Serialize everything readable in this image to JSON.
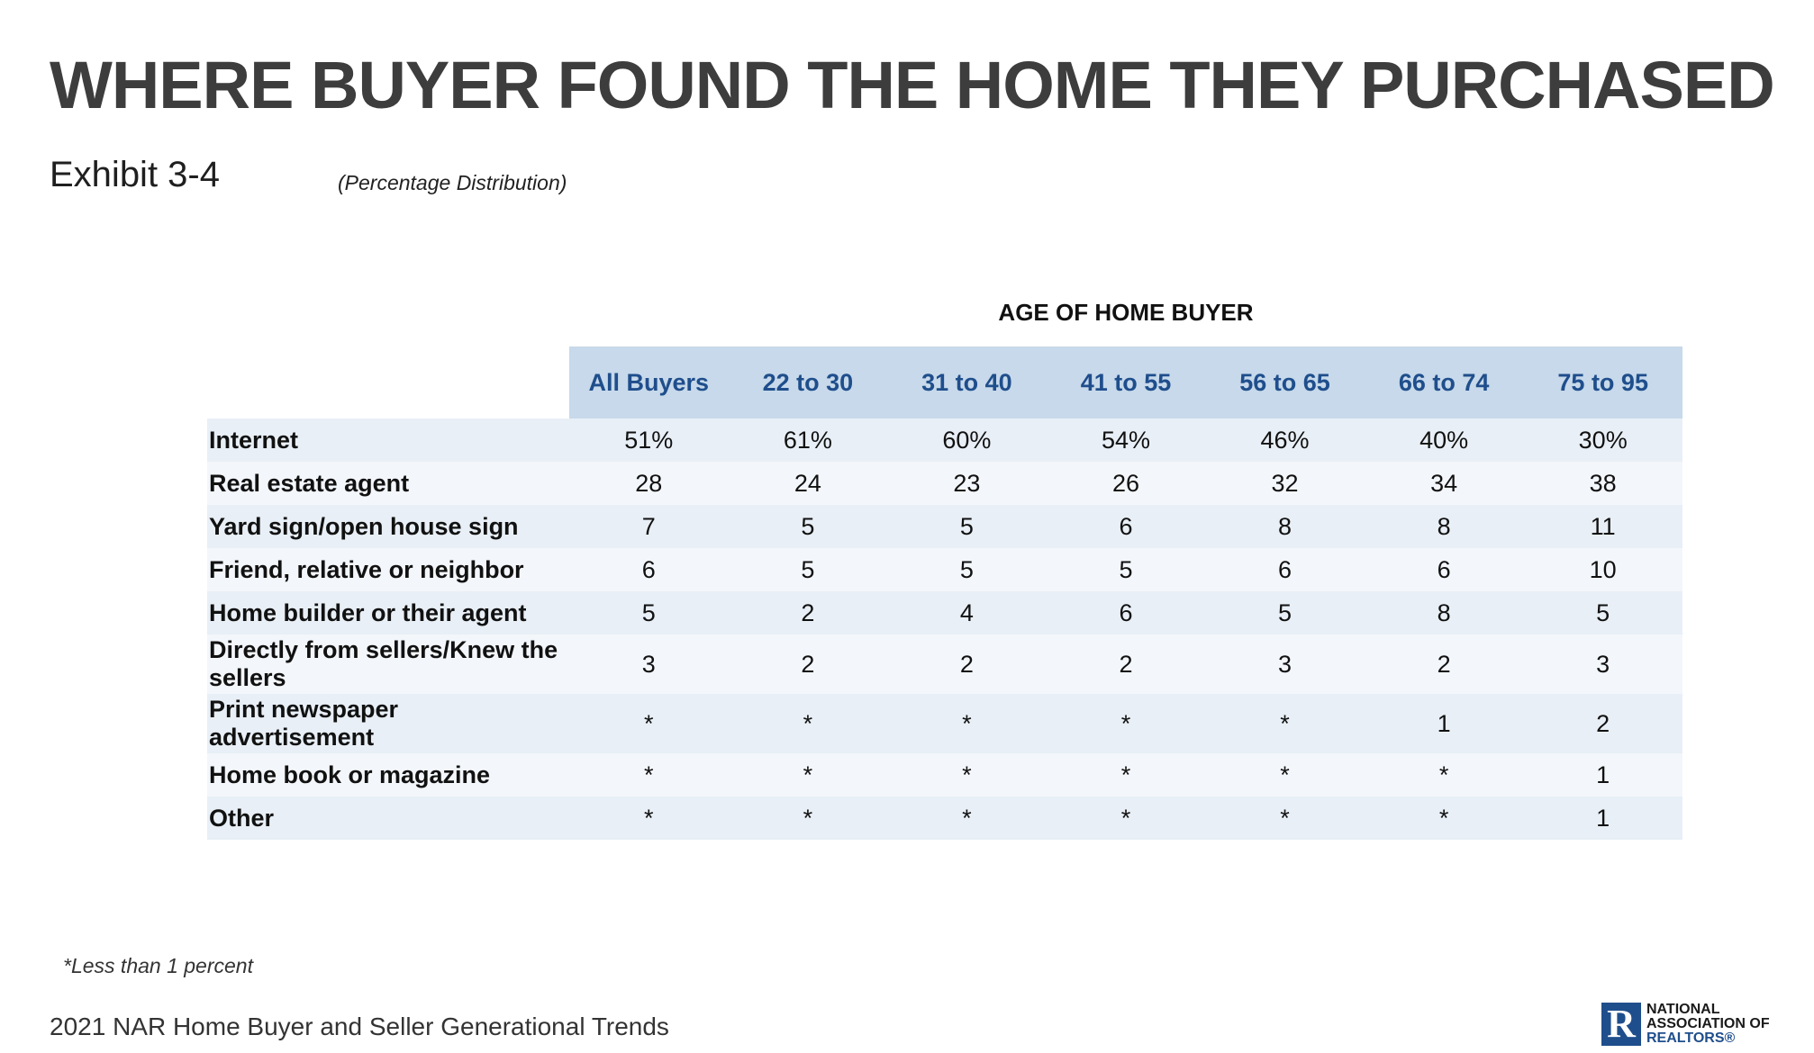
{
  "header": {
    "title": "WHERE BUYER FOUND THE HOME THEY PURCHASED",
    "exhibit": "Exhibit 3-4",
    "subtitle": "(Percentage Distribution)"
  },
  "table": {
    "group_header": "AGE OF HOME BUYER",
    "columns": [
      "All Buyers",
      "22 to 30",
      "31 to 40",
      "41 to 55",
      "56 to 65",
      "66 to 74",
      "75 to 95"
    ],
    "rows": [
      {
        "label": "Internet",
        "values": [
          "51%",
          "61%",
          "60%",
          "54%",
          "46%",
          "40%",
          "30%"
        ]
      },
      {
        "label": "Real estate agent",
        "values": [
          "28",
          "24",
          "23",
          "26",
          "32",
          "34",
          "38"
        ]
      },
      {
        "label": "Yard sign/open house sign",
        "values": [
          "7",
          "5",
          "5",
          "6",
          "8",
          "8",
          "11"
        ]
      },
      {
        "label": "Friend, relative or neighbor",
        "values": [
          "6",
          "5",
          "5",
          "5",
          "6",
          "6",
          "10"
        ]
      },
      {
        "label": "Home builder or their agent",
        "values": [
          "5",
          "2",
          "4",
          "6",
          "5",
          "8",
          "5"
        ]
      },
      {
        "label": "Directly from sellers/Knew the sellers",
        "values": [
          "3",
          "2",
          "2",
          "2",
          "3",
          "2",
          "3"
        ]
      },
      {
        "label": "Print newspaper advertisement",
        "values": [
          "*",
          "*",
          "*",
          "*",
          "*",
          "1",
          "2"
        ]
      },
      {
        "label": "Home book or magazine",
        "values": [
          "*",
          "*",
          "*",
          "*",
          "*",
          "*",
          "1"
        ]
      },
      {
        "label": "Other",
        "values": [
          "*",
          "*",
          "*",
          "*",
          "*",
          "*",
          "1"
        ]
      }
    ]
  },
  "footer": {
    "footnote": "*Less than 1 percent",
    "source": "2021 NAR Home Buyer and Seller Generational Trends",
    "logo_lines": [
      "NATIONAL",
      "ASSOCIATION OF",
      "REALTORS®"
    ],
    "logo_letter": "R"
  },
  "colors": {
    "header_bg": "#c7d9ea",
    "header_text": "#1f4e8c",
    "row_odd": "#e8eff6",
    "row_even": "#f3f6fa",
    "brand": "#1f4e8c"
  }
}
